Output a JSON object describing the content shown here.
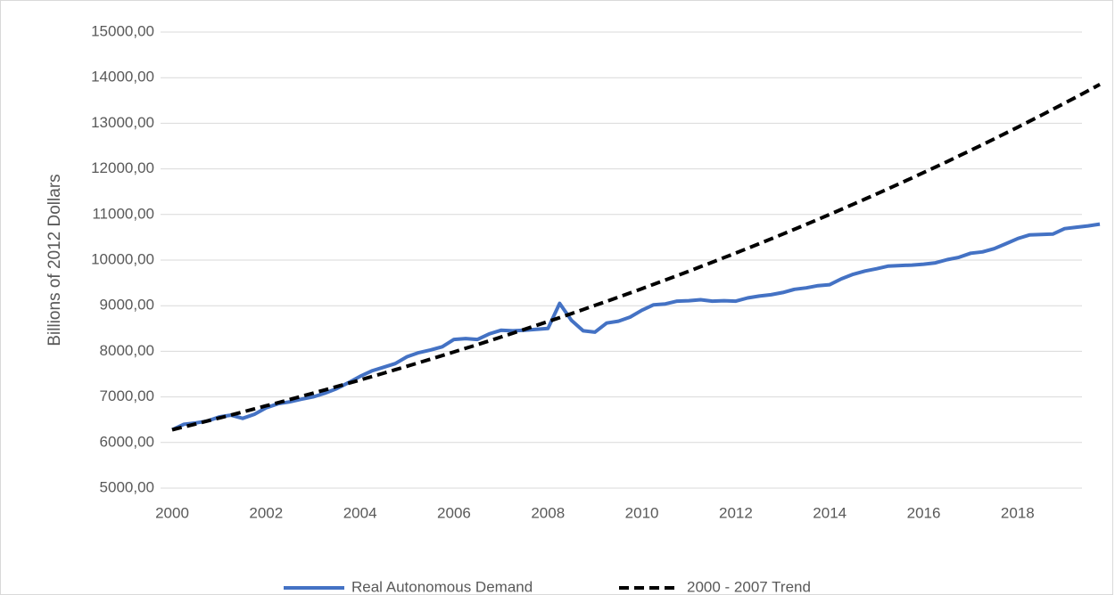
{
  "chart_data": {
    "type": "line",
    "ylabel": "Billions of 2012 Dollars",
    "x": [
      2000,
      2000.25,
      2000.5,
      2000.75,
      2001,
      2001.25,
      2001.5,
      2001.75,
      2002,
      2002.25,
      2002.5,
      2002.75,
      2003,
      2003.25,
      2003.5,
      2003.75,
      2004,
      2004.25,
      2004.5,
      2004.75,
      2005,
      2005.25,
      2005.5,
      2005.75,
      2006,
      2006.25,
      2006.5,
      2006.75,
      2007,
      2007.25,
      2007.5,
      2007.75,
      2008,
      2008.25,
      2008.5,
      2008.75,
      2009,
      2009.25,
      2009.5,
      2009.75,
      2010,
      2010.25,
      2010.5,
      2010.75,
      2011,
      2011.25,
      2011.5,
      2011.75,
      2012,
      2012.25,
      2012.5,
      2012.75,
      2013,
      2013.25,
      2013.5,
      2013.75,
      2014,
      2014.25,
      2014.5,
      2014.75,
      2015,
      2015.25,
      2015.5,
      2015.75,
      2016,
      2016.25,
      2016.5,
      2016.75,
      2017,
      2017.25,
      2017.5,
      2017.75,
      2018,
      2018.25,
      2018.5,
      2018.75,
      2019,
      2019.25,
      2019.5,
      2019.75
    ],
    "series": [
      {
        "name": "Real Autonomous Demand",
        "color": "#4472c4",
        "dash": false,
        "values": [
          6280,
          6400,
          6430,
          6470,
          6560,
          6600,
          6530,
          6620,
          6760,
          6850,
          6890,
          6950,
          7000,
          7080,
          7180,
          7310,
          7450,
          7570,
          7650,
          7730,
          7880,
          7970,
          8030,
          8100,
          8260,
          8280,
          8260,
          8380,
          8460,
          8450,
          8460,
          8480,
          8500,
          9050,
          8680,
          8450,
          8420,
          8620,
          8660,
          8750,
          8900,
          9020,
          9040,
          9100,
          9110,
          9130,
          9100,
          9110,
          9100,
          9170,
          9210,
          9240,
          9290,
          9360,
          9390,
          9440,
          9460,
          9590,
          9690,
          9760,
          9810,
          9870,
          9880,
          9890,
          9910,
          9940,
          10010,
          10060,
          10150,
          10180,
          10250,
          10360,
          10470,
          10550,
          10560,
          10570,
          10690,
          10720,
          10750,
          10790
        ]
      },
      {
        "name": "2000 - 2007 Trend",
        "color": "#000000",
        "dash": true,
        "values": [
          6280,
          6343,
          6407,
          6472,
          6537,
          6602,
          6669,
          6736,
          6804,
          6872,
          6941,
          7011,
          7082,
          7153,
          7225,
          7298,
          7371,
          7445,
          7520,
          7596,
          7672,
          7750,
          7828,
          7906,
          7986,
          8066,
          8147,
          8229,
          8312,
          8396,
          8480,
          8566,
          8652,
          8739,
          8827,
          8916,
          9005,
          9096,
          9187,
          9280,
          9373,
          9468,
          9563,
          9659,
          9756,
          9855,
          9954,
          10054,
          10155,
          10257,
          10360,
          10465,
          10570,
          10676,
          10784,
          10892,
          11002,
          11113,
          11224,
          11337,
          11451,
          11567,
          11683,
          11801,
          11919,
          12039,
          12160,
          12283,
          12406,
          12531,
          12657,
          12785,
          12913,
          13043,
          13174,
          13307,
          13441,
          13576,
          13713,
          13851
        ]
      }
    ],
    "xlim": [
      2000,
      2019.75
    ],
    "xticks": [
      2000,
      2002,
      2004,
      2006,
      2008,
      2010,
      2012,
      2014,
      2016,
      2018
    ],
    "ylim": [
      5000,
      15000
    ],
    "yticks": [
      {
        "value": 5000,
        "label": "5000,00"
      },
      {
        "value": 6000,
        "label": "6000,00"
      },
      {
        "value": 7000,
        "label": "7000,00"
      },
      {
        "value": 8000,
        "label": "8000,00"
      },
      {
        "value": 9000,
        "label": "9000,00"
      },
      {
        "value": 10000,
        "label": "10000,00"
      },
      {
        "value": 11000,
        "label": "11000,00"
      },
      {
        "value": 12000,
        "label": "12000,00"
      },
      {
        "value": 13000,
        "label": "13000,00"
      },
      {
        "value": 14000,
        "label": "14000,00"
      },
      {
        "value": 15000,
        "label": "15000,00"
      }
    ],
    "grid": true,
    "legend": "bottom"
  }
}
